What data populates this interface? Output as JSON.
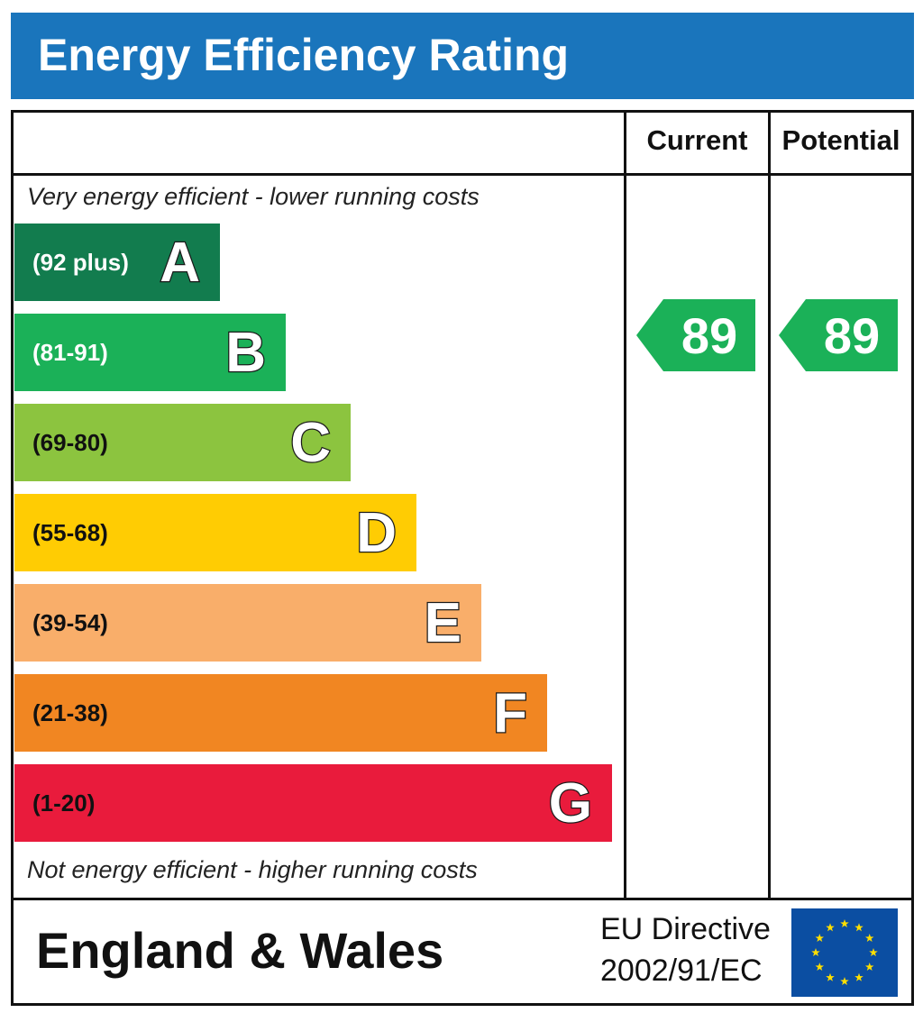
{
  "title": "Energy Efficiency Rating",
  "columns": {
    "current": "Current",
    "potential": "Potential"
  },
  "notes": {
    "top": "Very energy efficient - lower running costs",
    "bottom": "Not energy efficient - higher running costs"
  },
  "chart_data": {
    "type": "bar",
    "title": "Energy Efficiency Rating",
    "categories": [
      "A",
      "B",
      "C",
      "D",
      "E",
      "F",
      "G"
    ],
    "ranges": [
      "(92 plus)",
      "(81-91)",
      "(69-80)",
      "(55-68)",
      "(39-54)",
      "(21-38)",
      "(1-20)"
    ],
    "colors": [
      "#127c4e",
      "#1bb158",
      "#8cc43f",
      "#ffcc03",
      "#f9ae6a",
      "#f18622",
      "#e91b3c"
    ],
    "range_text_colors": [
      "#ffffff",
      "#ffffff",
      "#111111",
      "#111111",
      "#111111",
      "#111111",
      "#111111"
    ],
    "current_rating": 89,
    "potential_rating": 89,
    "current_band": "B",
    "potential_band": "B",
    "arrow_color": "#1bb158"
  },
  "footer": {
    "region": "England & Wales",
    "directive_line1": "EU Directive",
    "directive_line2": "2002/91/EC",
    "flag_icon": "eu-flag-icon"
  }
}
